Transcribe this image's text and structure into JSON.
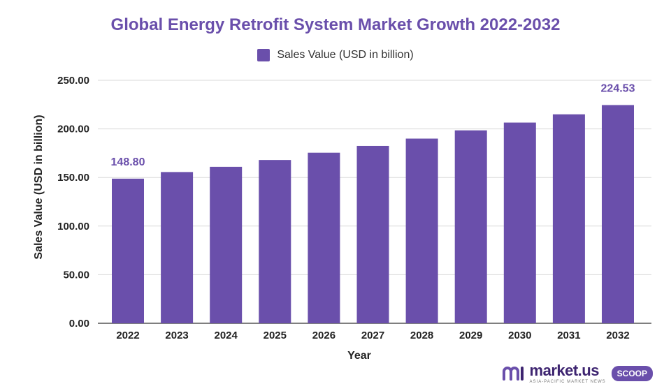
{
  "chart_data": {
    "type": "bar",
    "title": "Global Energy Retrofit System Market Growth 2022-2032",
    "xlabel": "Year",
    "ylabel": "Sales Value (USD in billion)",
    "categories": [
      "2022",
      "2023",
      "2024",
      "2025",
      "2026",
      "2027",
      "2028",
      "2029",
      "2030",
      "2031",
      "2032"
    ],
    "series": [
      {
        "name": "Sales Value (USD in billion)",
        "values": [
          148.8,
          155.6,
          161.0,
          168.0,
          175.5,
          182.5,
          190.0,
          198.5,
          206.5,
          215.0,
          224.53
        ],
        "color": "#6a4fab"
      }
    ],
    "ylim": [
      0,
      250
    ],
    "yticks": [
      "0.00",
      "50.00",
      "100.00",
      "150.00",
      "200.00",
      "250.00"
    ],
    "ytick_values": [
      0,
      50,
      100,
      150,
      200,
      250
    ],
    "data_labels": [
      {
        "index": 0,
        "text": "148.80"
      },
      {
        "index": 10,
        "text": "224.53"
      }
    ],
    "legend_position": "top-center",
    "grid": true,
    "grid_color": "#d9d9d9"
  },
  "brand": {
    "name": "market.us",
    "tagline": "ASIA-PACIFIC MARKET NEWS",
    "badge": "SCOOP"
  }
}
